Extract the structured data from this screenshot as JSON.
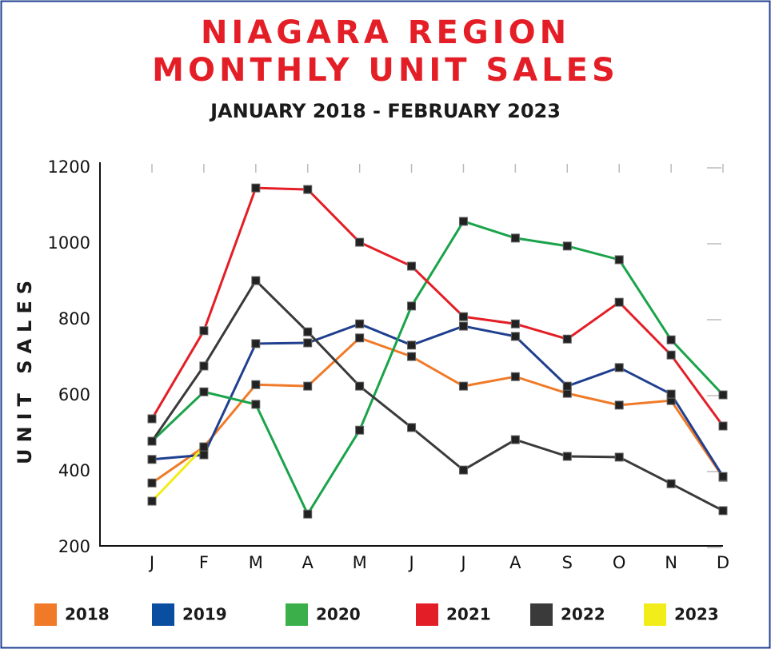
{
  "chart_data": {
    "type": "line",
    "title": "NIAGARA REGION MONTHLY UNIT SALES",
    "title_lines": [
      "NIAGARA REGION",
      "MONTHLY UNIT SALES"
    ],
    "subtitle": "JANUARY 2018 - FEBRUARY 2023",
    "y_label": "UNIT SALES",
    "categories": [
      "J",
      "F",
      "M",
      "A",
      "M",
      "J",
      "J",
      "A",
      "S",
      "O",
      "N",
      "D"
    ],
    "ylim": [
      200,
      1200
    ],
    "yticks": [
      200,
      400,
      600,
      800,
      1000,
      1200
    ],
    "series": [
      {
        "name": "2018",
        "color": "#f07a28",
        "values": [
          370,
          465,
          629,
          625,
          752,
          703,
          625,
          650,
          606,
          575,
          587,
          385
        ]
      },
      {
        "name": "2019",
        "color": "#1f3f8f",
        "legend_color": "#0a4ea2",
        "values": [
          432,
          444,
          737,
          739,
          789,
          733,
          783,
          756,
          625,
          674,
          604,
          387
        ]
      },
      {
        "name": "2020",
        "color": "#1aa34a",
        "legend_color": "#3bb04a",
        "values": [
          480,
          610,
          577,
          288,
          509,
          836,
          1059,
          1015,
          994,
          958,
          747,
          602
        ]
      },
      {
        "name": "2021",
        "color": "#e41e26",
        "values": [
          539,
          771,
          1147,
          1143,
          1004,
          941,
          808,
          789,
          749,
          846,
          707,
          520
        ]
      },
      {
        "name": "2022",
        "color": "#3a3a3a",
        "values": [
          480,
          678,
          903,
          768,
          625,
          516,
          404,
          484,
          440,
          438,
          368,
          297
        ]
      },
      {
        "name": "2023",
        "color": "#f2ec1a",
        "values": [
          322,
          465,
          null,
          null,
          null,
          null,
          null,
          null,
          null,
          null,
          null,
          null
        ]
      }
    ]
  }
}
